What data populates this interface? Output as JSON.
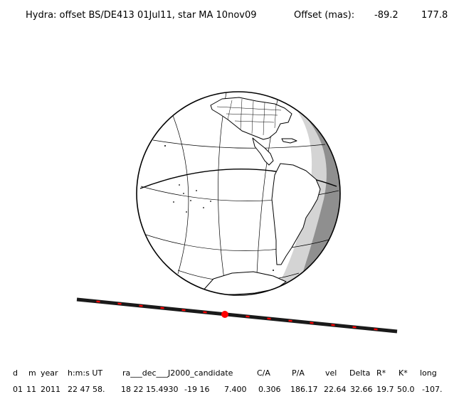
{
  "title": {
    "prefix": "Hydra: offset BS/DE413 01Jul11, star MA 10nov09",
    "offset_label": "Offset (mas):",
    "offset_x": "-89.2",
    "offset_y": "177.8"
  },
  "table": {
    "headers": {
      "d": "d",
      "m": "m",
      "year": "year",
      "time": "h:m:s UT",
      "coords": "ra___dec___J2000_candidate",
      "ca": "C/A",
      "pa": "P/A",
      "vel": "vel",
      "delta": "Delta",
      "rstar": "R*",
      "kstar": "K*",
      "long": "long"
    },
    "values": {
      "d": "01",
      "m": "11",
      "year": "2011",
      "time": "22 47 58.",
      "ra": "18 22 15.4930",
      "dec": "-19 16",
      "dec_sec": "7.400",
      "ca": "0.306",
      "pa": "186.17",
      "vel": "22.64",
      "delta": "32.66",
      "rstar": "19.7",
      "kstar": "50.0",
      "long": "-107."
    }
  },
  "colors": {
    "background": "#ffffff",
    "night_light": "#d4d4d4",
    "night_dark": "#8f8f8f",
    "track": "#1a1a1a",
    "track_marks": "#ff0000",
    "center_point": "#ff0000"
  }
}
